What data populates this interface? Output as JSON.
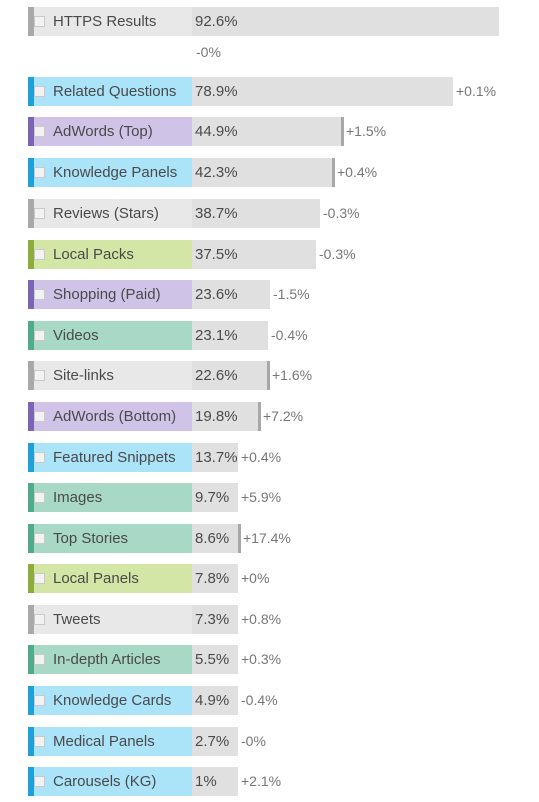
{
  "chart_data": {
    "type": "bar",
    "orientation": "horizontal",
    "xlim": [
      0,
      100
    ],
    "categories": [
      "HTTPS Results",
      "Related Questions",
      "AdWords (Top)",
      "Knowledge Panels",
      "Reviews (Stars)",
      "Local Packs",
      "Shopping (Paid)",
      "Videos",
      "Site-links",
      "AdWords (Bottom)",
      "Featured Snippets",
      "Images",
      "Top Stories",
      "Local Panels",
      "Tweets",
      "In-depth Articles",
      "Knowledge Cards",
      "Medical Panels",
      "Carousels (KG)"
    ],
    "values": [
      92.6,
      78.9,
      44.9,
      42.3,
      38.7,
      37.5,
      23.6,
      23.1,
      22.6,
      19.8,
      13.7,
      9.7,
      8.6,
      7.8,
      7.3,
      5.5,
      4.9,
      2.7,
      1
    ],
    "value_labels": [
      "92.6%",
      "78.9%",
      "44.9%",
      "42.3%",
      "38.7%",
      "37.5%",
      "23.6%",
      "23.1%",
      "22.6%",
      "19.8%",
      "13.7%",
      "9.7%",
      "8.6%",
      "7.8%",
      "7.3%",
      "5.5%",
      "4.9%",
      "2.7%",
      "1%"
    ],
    "changes": [
      -0.0,
      0.1,
      1.5,
      0.4,
      -0.3,
      -0.3,
      -1.5,
      -0.4,
      1.6,
      7.2,
      0.4,
      5.9,
      17.4,
      0.0,
      0.8,
      0.3,
      -0.4,
      -0.0,
      2.1
    ],
    "change_labels": [
      "-0%",
      "+0.1%",
      "+1.5%",
      "+0.4%",
      "-0.3%",
      "-0.3%",
      "-1.5%",
      "-0.4%",
      "+1.6%",
      "+7.2%",
      "+0.4%",
      "+5.9%",
      "+17.4%",
      "+0%",
      "+0.8%",
      "+0.3%",
      "-0.4%",
      "-0%",
      "+2.1%"
    ],
    "category_groups": [
      "gray",
      "blue",
      "purple",
      "blue",
      "gray",
      "green",
      "purple",
      "teal",
      "gray",
      "purple",
      "blue",
      "teal",
      "teal",
      "green",
      "gray",
      "teal",
      "blue",
      "blue",
      "blue"
    ],
    "group_colors": {
      "gray": {
        "stripe": "#a9a9a9",
        "fill": "#e8e8e8"
      },
      "blue": {
        "stripe": "#1ea0dc",
        "fill": "#abe3f8"
      },
      "purple": {
        "stripe": "#7a64b4",
        "fill": "#cfc4e8"
      },
      "green": {
        "stripe": "#8cad3c",
        "fill": "#d4e6a6"
      },
      "teal": {
        "stripe": "#50aa8c",
        "fill": "#a8d8c6"
      }
    },
    "track_color": "#e0e0e0",
    "marker_color": "#a8a8a8",
    "grid": false,
    "legend": "none"
  }
}
